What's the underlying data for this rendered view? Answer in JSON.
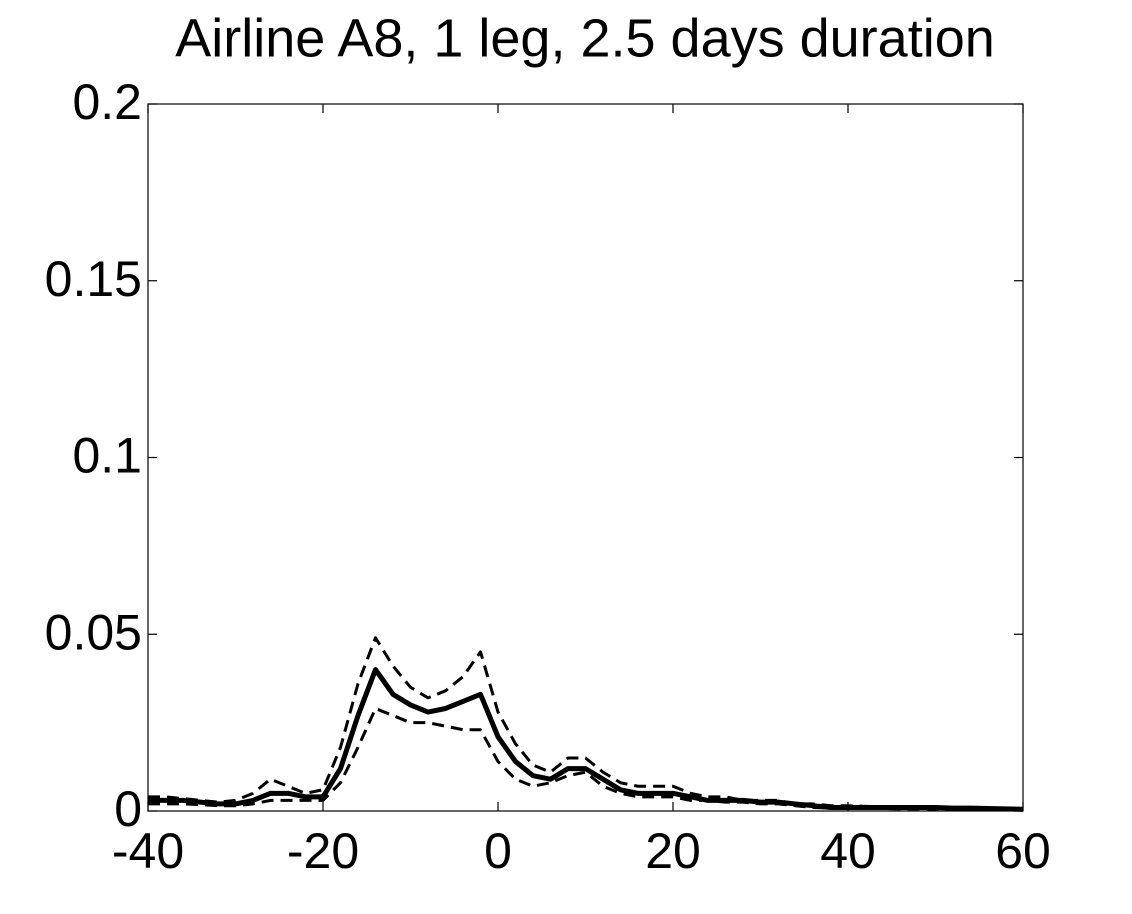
{
  "chart_data": {
    "type": "line",
    "title": "Airline A8, 1 leg, 2.5 days duration",
    "x": [
      -40,
      -38,
      -36,
      -34,
      -32,
      -30,
      -28,
      -26,
      -24,
      -22,
      -20,
      -18,
      -16,
      -14,
      -12,
      -10,
      -8,
      -6,
      -4,
      -2,
      0,
      2,
      4,
      6,
      8,
      10,
      12,
      14,
      16,
      18,
      20,
      22,
      24,
      26,
      28,
      30,
      32,
      34,
      36,
      38,
      40,
      42,
      44,
      46,
      48,
      50,
      52,
      54,
      56,
      58,
      60
    ],
    "series": [
      {
        "color": "#000000",
        "line_style": "solid",
        "line_width": 5,
        "values": [
          0.003,
          0.003,
          0.003,
          0.0025,
          0.002,
          0.002,
          0.003,
          0.005,
          0.005,
          0.004,
          0.004,
          0.012,
          0.027,
          0.04,
          0.033,
          0.03,
          0.028,
          0.029,
          0.031,
          0.033,
          0.021,
          0.014,
          0.01,
          0.009,
          0.012,
          0.012,
          0.009,
          0.006,
          0.005,
          0.005,
          0.005,
          0.004,
          0.003,
          0.003,
          0.003,
          0.0025,
          0.0025,
          0.002,
          0.0015,
          0.001,
          0.001,
          0.001,
          0.001,
          0.001,
          0.001,
          0.001,
          0.0008,
          0.0008,
          0.0007,
          0.0006,
          0.0005
        ]
      },
      {
        "color": "#000000",
        "line_style": "dashed",
        "line_width": 3,
        "values": [
          0.004,
          0.004,
          0.0035,
          0.003,
          0.0025,
          0.003,
          0.005,
          0.009,
          0.007,
          0.005,
          0.006,
          0.018,
          0.036,
          0.049,
          0.041,
          0.035,
          0.032,
          0.034,
          0.038,
          0.045,
          0.028,
          0.019,
          0.013,
          0.011,
          0.015,
          0.015,
          0.011,
          0.008,
          0.007,
          0.007,
          0.007,
          0.005,
          0.004,
          0.004,
          0.003,
          0.003,
          0.003,
          0.002,
          0.002,
          0.0015,
          0.0015,
          0.0013,
          0.0012,
          0.0012,
          0.0011,
          0.001,
          0.001,
          0.0009,
          0.0008,
          0.0008,
          0.0007
        ]
      },
      {
        "color": "#000000",
        "line_style": "dashed",
        "line_width": 3,
        "values": [
          0.002,
          0.002,
          0.002,
          0.0018,
          0.0015,
          0.0015,
          0.002,
          0.003,
          0.003,
          0.003,
          0.003,
          0.008,
          0.018,
          0.029,
          0.027,
          0.025,
          0.025,
          0.024,
          0.023,
          0.023,
          0.014,
          0.009,
          0.007,
          0.008,
          0.01,
          0.011,
          0.007,
          0.005,
          0.004,
          0.004,
          0.004,
          0.003,
          0.003,
          0.0025,
          0.0025,
          0.002,
          0.002,
          0.0015,
          0.001,
          0.0008,
          0.0008,
          0.0007,
          0.0007,
          0.0006,
          0.0006,
          0.0005,
          0.0005,
          0.0005,
          0.0004,
          0.0004,
          0.0004
        ]
      }
    ],
    "xlim": [
      -40,
      60
    ],
    "xticks": [
      -40,
      -20,
      0,
      20,
      40,
      60
    ],
    "ylim": [
      0,
      0.2
    ],
    "yticks": [
      0,
      0.05,
      0.1,
      0.15,
      0.2
    ],
    "grid": false
  }
}
